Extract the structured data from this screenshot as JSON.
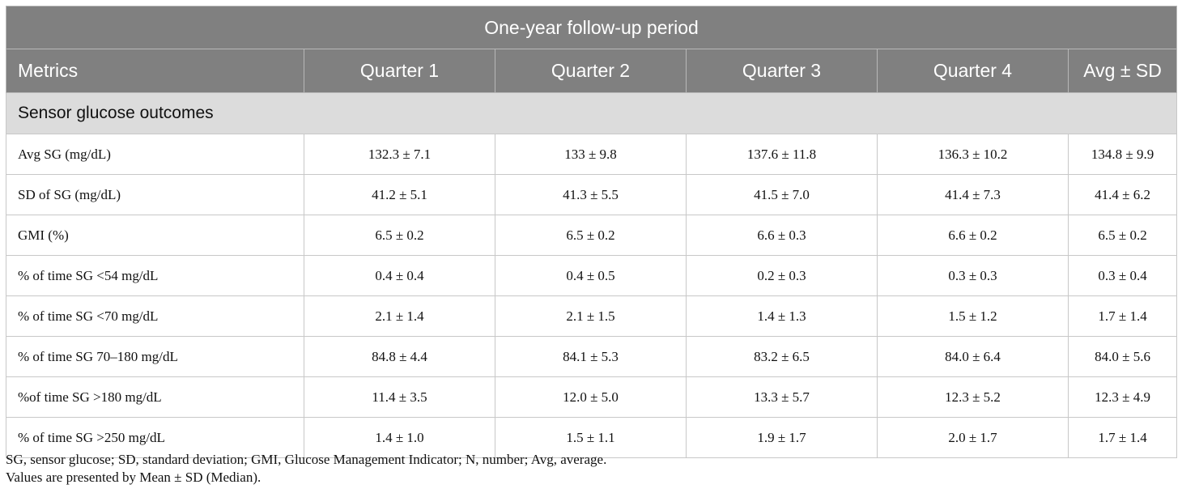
{
  "table": {
    "title": "One-year follow-up period",
    "columns": [
      "Metrics",
      "Quarter 1",
      "Quarter 2",
      "Quarter 3",
      "Quarter 4",
      "Avg ± SD"
    ],
    "section": "Sensor glucose outcomes",
    "rows": [
      {
        "metric": "Avg SG (mg/dL)",
        "values": [
          "132.3 ± 7.1",
          "133 ± 9.8",
          "137.6 ± 11.8",
          "136.3 ± 10.2",
          "134.8 ± 9.9"
        ]
      },
      {
        "metric": "SD of SG (mg/dL)",
        "values": [
          "41.2 ± 5.1",
          "41.3 ± 5.5",
          "41.5 ± 7.0",
          "41.4 ± 7.3",
          "41.4 ± 6.2"
        ]
      },
      {
        "metric": "GMI (%)",
        "values": [
          "6.5 ± 0.2",
          "6.5 ± 0.2",
          "6.6 ± 0.3",
          "6.6 ± 0.2",
          "6.5 ± 0.2"
        ]
      },
      {
        "metric": "% of time SG <54 mg/dL",
        "values": [
          "0.4 ± 0.4",
          "0.4 ± 0.5",
          "0.2 ± 0.3",
          "0.3 ± 0.3",
          "0.3 ± 0.4"
        ]
      },
      {
        "metric": "% of time SG <70 mg/dL",
        "values": [
          "2.1 ± 1.4",
          "2.1 ± 1.5",
          "1.4 ± 1.3",
          "1.5 ± 1.2",
          "1.7 ± 1.4"
        ]
      },
      {
        "metric": "% of time SG 70–180 mg/dL",
        "values": [
          "84.8 ± 4.4",
          "84.1 ± 5.3",
          "83.2 ± 6.5",
          "84.0 ± 6.4",
          "84.0 ± 5.6"
        ]
      },
      {
        "metric": "%of time SG >180 mg/dL",
        "values": [
          "11.4 ± 3.5",
          "12.0 ± 5.0",
          "13.3 ± 5.7",
          "12.3 ± 5.2",
          "12.3 ± 4.9"
        ]
      },
      {
        "metric": "% of time SG >250 mg/dL",
        "values": [
          "1.4 ± 1.0",
          "1.5 ± 1.1",
          "1.9 ± 1.7",
          "2.0 ± 1.7",
          "1.7 ± 1.4"
        ]
      }
    ]
  },
  "footnotes": [
    "SG, sensor glucose; SD, standard deviation; GMI, Glucose Management Indicator; N, number; Avg, average.",
    "Values are presented by Mean ± SD (Median)."
  ],
  "colors": {
    "header_bg": "#808080",
    "section_bg": "#dcdcdc"
  }
}
